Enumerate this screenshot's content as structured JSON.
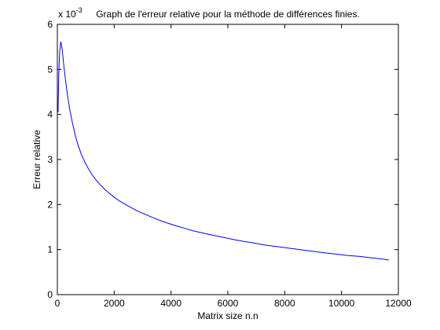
{
  "chart_data": {
    "type": "line",
    "title": "Graph de l'erreur relative pour la méthode de différences finies.",
    "xlabel": "Matrix size n.n",
    "ylabel": "Erreur relative",
    "y_scale_label": "x 10",
    "y_scale_exponent": "-3",
    "xlim": [
      0,
      12000
    ],
    "ylim": [
      0,
      6
    ],
    "xticks": [
      "0",
      "2000",
      "4000",
      "6000",
      "8000",
      "10000",
      "12000"
    ],
    "yticks": [
      "0",
      "1",
      "2",
      "3",
      "4",
      "5",
      "6"
    ],
    "grid": false,
    "line_color": "#0000ff",
    "series": [
      {
        "x": [
          25,
          49,
          81,
          121,
          169,
          225,
          289,
          361,
          441,
          529,
          625,
          729,
          841,
          961,
          1089,
          1225,
          1369,
          1521,
          1681,
          1849,
          2025,
          2209,
          2401,
          2601,
          2809,
          3025,
          3249,
          3481,
          3721,
          3969,
          4225,
          4489,
          4761,
          5041,
          5329,
          5625,
          5929,
          6241,
          6561,
          6889,
          7225,
          7569,
          7921,
          8281,
          8649,
          9025,
          9409,
          9801,
          10201,
          10609,
          11025,
          11449,
          11664
        ],
        "y": [
          4.05,
          4.9,
          5.4,
          5.62,
          5.45,
          5.1,
          4.75,
          4.4,
          4.1,
          3.82,
          3.55,
          3.32,
          3.12,
          2.95,
          2.8,
          2.66,
          2.54,
          2.43,
          2.33,
          2.24,
          2.15,
          2.07,
          2.0,
          1.93,
          1.86,
          1.8,
          1.74,
          1.68,
          1.62,
          1.57,
          1.52,
          1.47,
          1.42,
          1.38,
          1.34,
          1.3,
          1.26,
          1.22,
          1.18,
          1.15,
          1.11,
          1.08,
          1.05,
          1.02,
          0.99,
          0.96,
          0.93,
          0.9,
          0.87,
          0.85,
          0.82,
          0.79,
          0.77
        ]
      }
    ]
  }
}
